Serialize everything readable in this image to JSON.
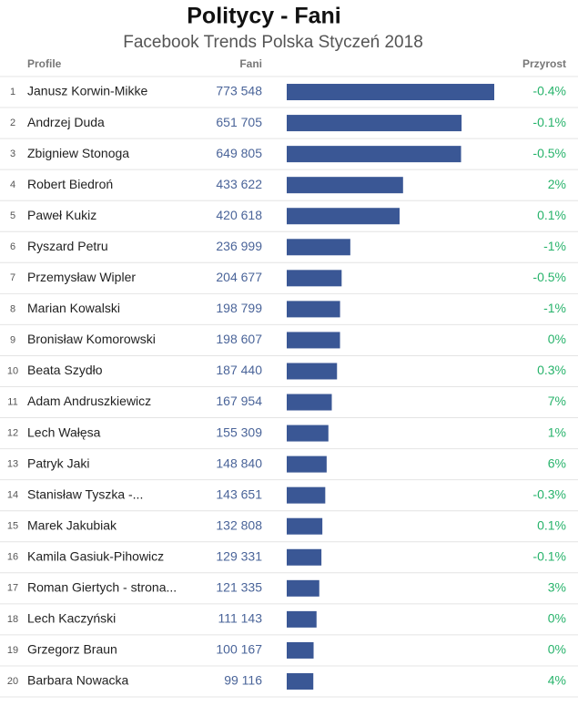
{
  "chart_data": {
    "type": "bar",
    "title": "Politycy - Fani",
    "subtitle": "Facebook Trends Polska Styczeń 2018",
    "headers": {
      "profile": "Profile",
      "fans": "Fani",
      "growth": "Przyrost"
    },
    "color": "#3a5795",
    "ranks": [
      1,
      2,
      3,
      4,
      5,
      6,
      7,
      8,
      9,
      10,
      11,
      12,
      13,
      14,
      15,
      16,
      17,
      18,
      19,
      20
    ],
    "categories": [
      "Janusz Korwin-Mikke",
      "Andrzej Duda",
      "Zbigniew Stonoga",
      "Robert Biedroń",
      "Paweł Kukiz",
      "Ryszard Petru",
      "Przemysław Wipler",
      "Marian Kowalski",
      "Bronisław Komorowski",
      "Beata Szydło",
      "Adam Andruszkiewicz",
      "Lech Wałęsa",
      "Patryk Jaki",
      "Stanisław Tyszka -...",
      "Marek Jakubiak",
      "Kamila Gasiuk-Pihowicz",
      "Roman Giertych - strona...",
      "Lech Kaczyński",
      "Grzegorz Braun",
      "Barbara Nowacka"
    ],
    "values": [
      773548,
      651705,
      649805,
      433622,
      420618,
      236999,
      204677,
      198799,
      198607,
      187440,
      167954,
      155309,
      148840,
      143651,
      132808,
      129331,
      121335,
      111143,
      100167,
      99116
    ],
    "value_labels": [
      "773 548",
      "651 705",
      "649 805",
      "433 622",
      "420 618",
      "236 999",
      "204 677",
      "198 799",
      "198 607",
      "187 440",
      "167 954",
      "155 309",
      "148 840",
      "143 651",
      "132 808",
      "129 331",
      "121 335",
      "111 143",
      "100 167",
      "99 116"
    ],
    "growth": [
      "-0.4%",
      "-0.1%",
      "-0.5%",
      "2%",
      "0.1%",
      "-1%",
      "-0.5%",
      "-1%",
      "0%",
      "0.3%",
      "7%",
      "1%",
      "6%",
      "-0.3%",
      "0.1%",
      "-0.1%",
      "3%",
      "0%",
      "0%",
      "4%"
    ]
  }
}
